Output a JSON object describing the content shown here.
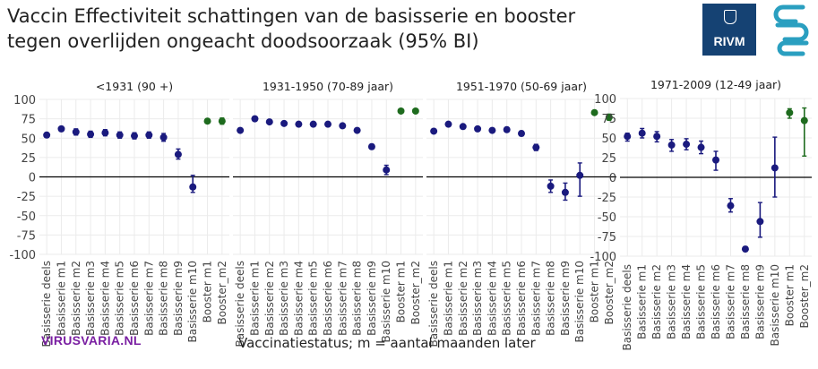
{
  "title_lines": [
    "Vaccin Effectiviteit schattingen van de basisserie en booster",
    "tegen overlijden ongeacht doodsoorzaak (95% BI)"
  ],
  "logos": {
    "rivm": "RIVM",
    "cbs": "cbs"
  },
  "brand": "VIRUSVARIA.NL",
  "colors": {
    "basisserie": "#1a1a7e",
    "booster": "#1e6b1e",
    "zero_line": "#000000",
    "grid": "#ebebeb",
    "brand": "#7a1fa2",
    "rivm_bg": "#154273",
    "cbs": "#2a9fc0"
  },
  "chart_data": {
    "type": "scatter",
    "ylabel": "",
    "xlabel": "Vaccinatiestatus; m = aantal maanden later",
    "ylim": [
      -100,
      100
    ],
    "yticks": [
      100,
      75,
      50,
      25,
      0,
      -25,
      -50,
      -75,
      -100
    ],
    "zero_line": 0,
    "grid": true,
    "facets": [
      {
        "title": "<1931 (90 +)",
        "categories": [
          "Basisserie deels",
          "Basisserie m1",
          "Basisserie m2",
          "Basisserie m3",
          "Basisserie m4",
          "Basisserie m5",
          "Basisserie m6",
          "Basisserie m7",
          "Basisserie m8",
          "Basisserie m9",
          "Basisserie m10",
          "Booster m1",
          "Booster_m2"
        ],
        "values": [
          54,
          62,
          58,
          55,
          57,
          54,
          53,
          54,
          51,
          29,
          -13,
          72,
          72
        ],
        "ci_low": [
          51,
          59,
          54,
          51,
          53,
          50,
          49,
          50,
          46,
          23,
          -20,
          69,
          68
        ],
        "ci_high": [
          57,
          65,
          62,
          59,
          61,
          58,
          57,
          58,
          56,
          36,
          2,
          75,
          76
        ],
        "groups": [
          "basisserie",
          "basisserie",
          "basisserie",
          "basisserie",
          "basisserie",
          "basisserie",
          "basisserie",
          "basisserie",
          "basisserie",
          "basisserie",
          "basisserie",
          "booster",
          "booster"
        ]
      },
      {
        "title": "1931-1950 (70-89 jaar)",
        "categories": [
          "Basisserie deels",
          "Basisserie m1",
          "Basisserie m2",
          "Basisserie m3",
          "Basisserie m4",
          "Basisserie m5",
          "Basisserie m6",
          "Basisserie m7",
          "Basisserie m8",
          "Basisserie m9",
          "Basisserie m10",
          "Booster m1",
          "Booster_m2"
        ],
        "values": [
          60,
          75,
          71,
          69,
          68,
          68,
          68,
          66,
          60,
          39,
          9,
          85,
          85
        ],
        "ci_low": [
          58,
          73,
          69,
          67,
          66,
          66,
          66,
          64,
          58,
          36,
          3,
          84,
          84
        ],
        "ci_high": [
          62,
          77,
          73,
          71,
          70,
          70,
          70,
          68,
          62,
          42,
          15,
          86,
          86
        ],
        "groups": [
          "basisserie",
          "basisserie",
          "basisserie",
          "basisserie",
          "basisserie",
          "basisserie",
          "basisserie",
          "basisserie",
          "basisserie",
          "basisserie",
          "basisserie",
          "booster",
          "booster"
        ]
      },
      {
        "title": "1951-1970 (50-69 jaar)",
        "categories": [
          "Basisserie deels",
          "Basisserie m1",
          "Basisserie m2",
          "Basisserie m3",
          "Basisserie m4",
          "Basisserie m5",
          "Basisserie m6",
          "Basisserie m7",
          "Basisserie m8",
          "Basisserie m9",
          "Basisserie m10",
          "Booster m1",
          "Booster_m2"
        ],
        "values": [
          59,
          68,
          65,
          62,
          60,
          61,
          56,
          38,
          -12,
          -20,
          2,
          83,
          77
        ],
        "ci_low": [
          57,
          66,
          63,
          60,
          58,
          59,
          53,
          34,
          -20,
          -30,
          -25,
          81,
          73
        ],
        "ci_high": [
          61,
          70,
          67,
          64,
          62,
          63,
          59,
          42,
          -4,
          -8,
          18,
          85,
          81
        ],
        "groups": [
          "basisserie",
          "basisserie",
          "basisserie",
          "basisserie",
          "basisserie",
          "basisserie",
          "basisserie",
          "basisserie",
          "basisserie",
          "basisserie",
          "basisserie",
          "booster",
          "booster"
        ]
      },
      {
        "title": "1971-2009 (12-49 jaar)",
        "categories": [
          "Basisserie deels",
          "Basisserie m1",
          "Basisserie m2",
          "Basisserie m3",
          "Basisserie m4",
          "Basisserie m5",
          "Basisserie m6",
          "Basisserie m7",
          "Basisserie m8",
          "Basisserie m9",
          "Basisserie m10",
          "Booster m1",
          "Booster_m2"
        ],
        "values": [
          52,
          56,
          52,
          41,
          42,
          38,
          22,
          -36,
          -91,
          -56,
          12,
          82,
          72
        ],
        "ci_low": [
          46,
          50,
          45,
          33,
          35,
          30,
          9,
          -44,
          -94,
          -76,
          -25,
          75,
          27
        ],
        "ci_high": [
          56,
          62,
          58,
          48,
          49,
          46,
          33,
          -27,
          -88,
          -32,
          51,
          87,
          88
        ],
        "groups": [
          "basisserie",
          "basisserie",
          "basisserie",
          "basisserie",
          "basisserie",
          "basisserie",
          "basisserie",
          "basisserie",
          "basisserie",
          "basisserie",
          "basisserie",
          "booster",
          "booster"
        ]
      }
    ]
  }
}
